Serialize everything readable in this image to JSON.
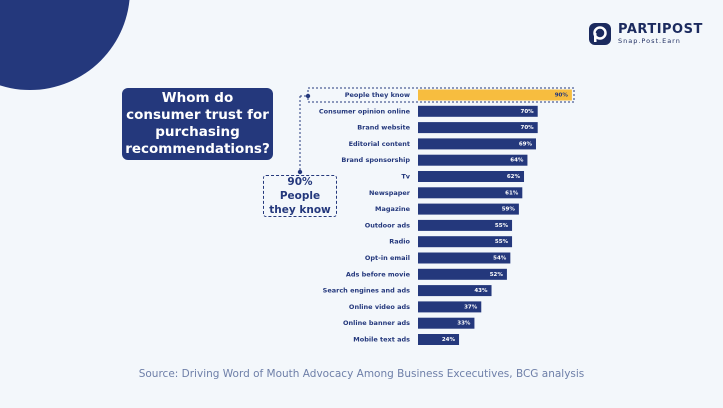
{
  "logo": {
    "name": "PARTIPOST",
    "tagline": "Snap.Post.Earn"
  },
  "source": "Source: Driving Word of Mouth Advocacy Among Business Excecutives, BCG analysis",
  "chart_data": {
    "type": "bar",
    "orientation": "horizontal",
    "title": "Whom do consumer trust for purchasing recommendations?",
    "annotation": "90% People they know",
    "categories": [
      "People they know",
      "Consumer opinion online",
      "Brand website",
      "Editorial content",
      "Brand sponsorship",
      "Tv",
      "Newspaper",
      "Magazine",
      "Outdoor ads",
      "Radio",
      "Opt-in email",
      "Ads before movie",
      "Search engines and ads",
      "Online video ads",
      "Online banner ads",
      "Mobile text ads"
    ],
    "values": [
      90,
      70,
      70,
      69,
      64,
      62,
      61,
      59,
      55,
      55,
      54,
      52,
      43,
      37,
      33,
      24
    ],
    "value_labels": [
      "90%",
      "70%",
      "70%",
      "69%",
      "64%",
      "62%",
      "61%",
      "59%",
      "55%",
      "55%",
      "54%",
      "52%",
      "43%",
      "37%",
      "33%",
      "24%"
    ],
    "colors": [
      "#f7bd3f",
      "#24387c",
      "#24387c",
      "#24387c",
      "#24387c",
      "#24387c",
      "#24387c",
      "#24387c",
      "#24387c",
      "#24387c",
      "#24387c",
      "#24387c",
      "#24387c",
      "#24387c",
      "#24387c",
      "#24387c"
    ]
  }
}
